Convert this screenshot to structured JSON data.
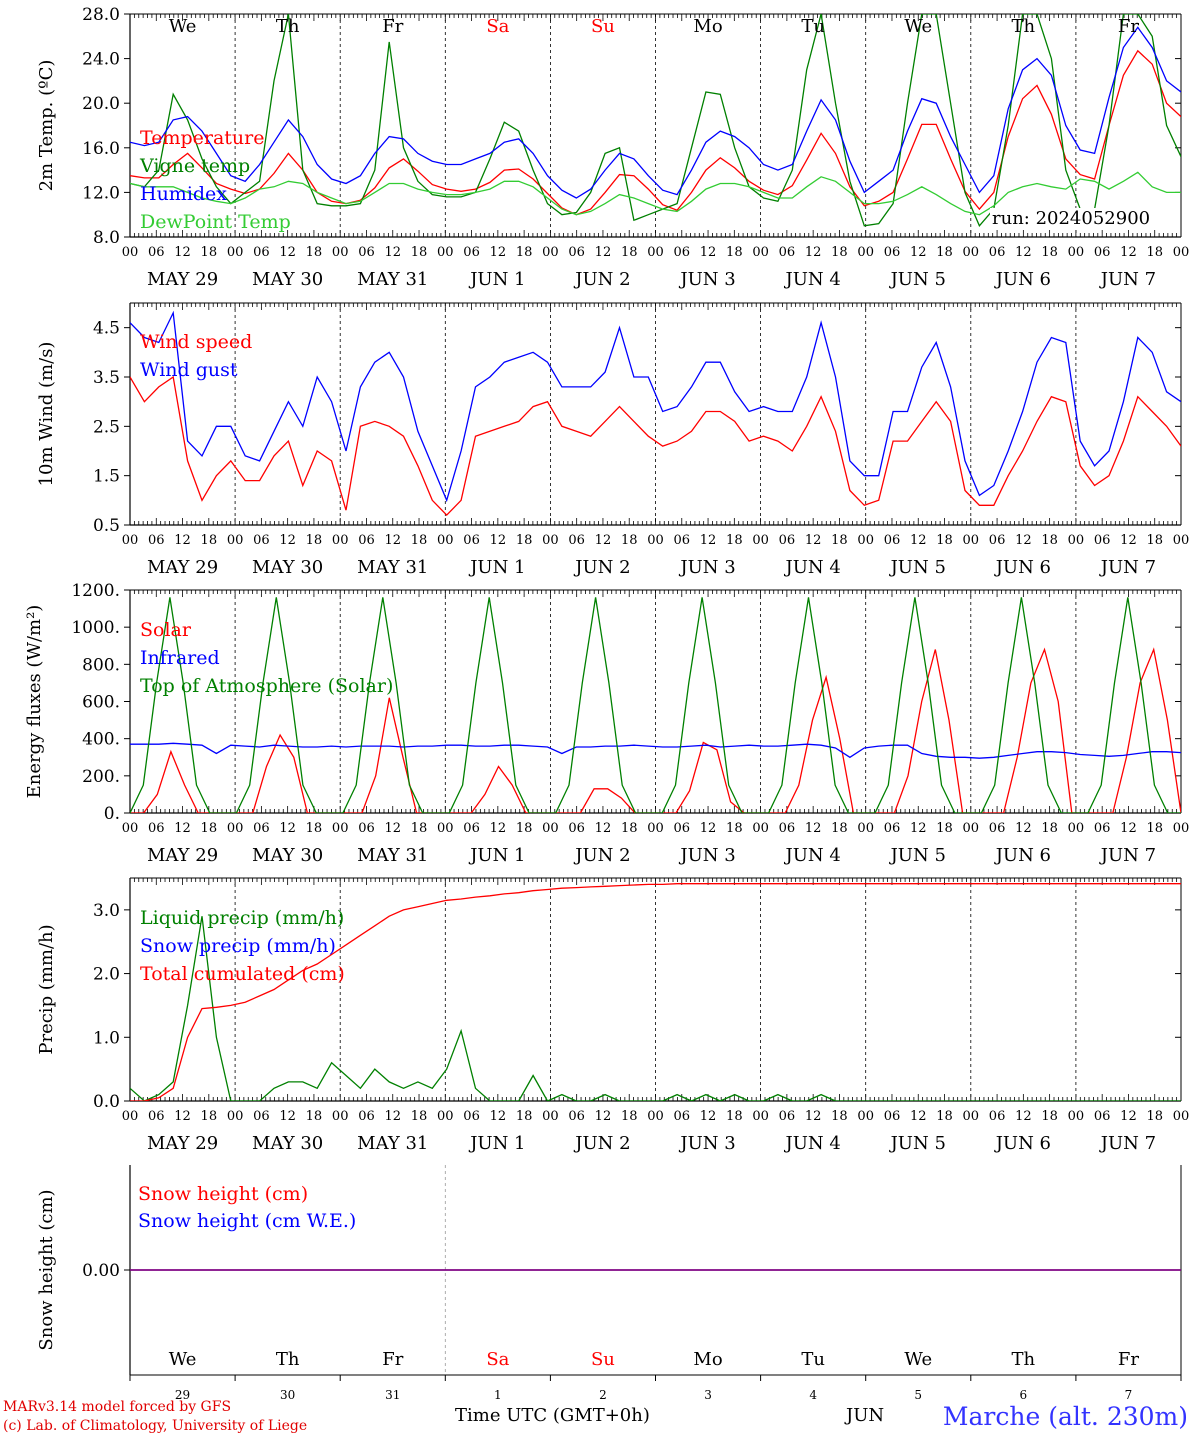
{
  "run_label": "run: 2024052900",
  "footer": {
    "credit_line1": "MARv3.14 model forced by GFS",
    "credit_line2": "(c) Lab. of Climatology, University of Liege",
    "station": "Marche (alt. 230m)",
    "month": "JUN",
    "time_axis": "Time UTC (GMT+0h)"
  },
  "colors": {
    "red": "#ff0000",
    "green": "#008000",
    "blue": "#0000ff",
    "light_green": "#33cc33",
    "purple": "#800080",
    "weekend": "#ff0000"
  },
  "days": {
    "weekdays": [
      "We",
      "Th",
      "Fr",
      "Sa",
      "Su",
      "Mo",
      "Tu",
      "We",
      "Th",
      "Fr"
    ],
    "weekend_flags": [
      false,
      false,
      false,
      true,
      true,
      false,
      false,
      false,
      false,
      false
    ],
    "date_labels": [
      "MAY 29",
      "MAY 30",
      "MAY 31",
      "JUN  1",
      "JUN  2",
      "JUN  3",
      "JUN  4",
      "JUN  5",
      "JUN  6",
      "JUN  7"
    ],
    "day_numbers": [
      "29",
      "30",
      "31",
      "1",
      "2",
      "3",
      "4",
      "5",
      "6",
      "7"
    ],
    "hour_ticks": [
      "00",
      "06",
      "12",
      "18"
    ]
  },
  "chart_data": [
    {
      "type": "line",
      "ylabel": "2m Temp. (ºC)",
      "ylim": [
        8,
        28
      ],
      "yticks": [
        "8.0",
        "12.0",
        "16.0",
        "20.0",
        "24.0",
        "28.0"
      ],
      "x_unit": "hours since 2024-05-29 00 UTC, every 3 h",
      "series": [
        {
          "name": "Temperature",
          "color": "red",
          "values": [
            13.5,
            13.3,
            13.3,
            14.5,
            15.5,
            14.2,
            12.8,
            12.3,
            11.9,
            12.3,
            13.7,
            15.5,
            14.0,
            12.0,
            11.2,
            11.0,
            11.3,
            12.4,
            14.2,
            15.0,
            13.9,
            12.7,
            12.3,
            12.1,
            12.3,
            12.9,
            14.0,
            14.1,
            13.2,
            11.9,
            10.6,
            10.0,
            10.5,
            12.0,
            13.6,
            13.5,
            12.3,
            10.9,
            10.4,
            12.0,
            14.0,
            15.1,
            14.2,
            13.0,
            12.2,
            11.8,
            12.6,
            14.9,
            17.3,
            15.5,
            12.5,
            10.8,
            11.2,
            12.0,
            15.0,
            18.1,
            18.1,
            15.0,
            12.1,
            10.5,
            12.0,
            17.0,
            20.4,
            21.6,
            19.0,
            15.0,
            13.6,
            13.2,
            18.0,
            22.5,
            24.7,
            23.5,
            20.0,
            18.8
          ]
        },
        {
          "name": "Vigne temp",
          "color": "green",
          "values": [
            12.8,
            12.5,
            14.0,
            20.8,
            18.5,
            15.0,
            12.5,
            11.0,
            12.0,
            13.0,
            22.0,
            28.0,
            14.0,
            11.0,
            10.8,
            10.8,
            11.0,
            14.0,
            25.5,
            16.0,
            13.0,
            11.8,
            11.6,
            11.6,
            12.0,
            15.0,
            18.3,
            17.5,
            14.0,
            11.0,
            10.0,
            10.2,
            12.0,
            15.5,
            16.0,
            9.5,
            10.0,
            10.5,
            11.0,
            16.0,
            21.0,
            20.8,
            16.0,
            12.5,
            11.5,
            11.2,
            14.0,
            23.0,
            28.0,
            20.0,
            13.0,
            9.0,
            9.2,
            11.0,
            20.0,
            28.0,
            28.0,
            20.0,
            12.0,
            9.0,
            10.5,
            18.0,
            28.0,
            28.0,
            24.0,
            14.0,
            10.5,
            10.5,
            18.0,
            28.0,
            28.0,
            26.0,
            18.0,
            15.2
          ]
        },
        {
          "name": "Humidex",
          "color": "blue",
          "values": [
            16.5,
            16.2,
            16.5,
            18.5,
            18.8,
            17.5,
            15.5,
            13.5,
            13.0,
            14.5,
            16.5,
            18.5,
            17.0,
            14.5,
            13.2,
            12.8,
            13.5,
            15.5,
            17.0,
            16.8,
            15.5,
            14.8,
            14.5,
            14.5,
            15.0,
            15.5,
            16.5,
            16.8,
            15.5,
            13.5,
            12.2,
            11.5,
            12.3,
            14.0,
            15.5,
            15.0,
            13.5,
            12.2,
            11.8,
            14.0,
            16.5,
            17.5,
            17.0,
            16.0,
            14.5,
            14.0,
            14.5,
            17.5,
            20.3,
            18.5,
            14.8,
            12.0,
            13.0,
            14.0,
            17.5,
            20.4,
            20.0,
            17.0,
            14.5,
            12.0,
            13.5,
            19.5,
            23.0,
            24.0,
            22.5,
            18.0,
            15.8,
            15.5,
            20.5,
            25.0,
            26.8,
            25.0,
            22.0,
            21.0
          ]
        },
        {
          "name": "DewPoint Temp",
          "color": "light_green",
          "values": [
            12.8,
            12.5,
            12.5,
            12.5,
            12.0,
            11.5,
            11.2,
            11.0,
            11.5,
            12.3,
            12.5,
            13.0,
            12.8,
            12.0,
            11.5,
            11.0,
            11.2,
            12.0,
            12.8,
            12.8,
            12.3,
            12.0,
            11.8,
            11.8,
            12.0,
            12.3,
            13.0,
            13.0,
            12.5,
            11.5,
            10.5,
            10.0,
            10.3,
            11.0,
            11.8,
            11.5,
            11.0,
            10.5,
            10.3,
            11.2,
            12.3,
            12.8,
            12.8,
            12.5,
            12.0,
            11.5,
            11.5,
            12.5,
            13.4,
            13.0,
            12.0,
            11.0,
            11.0,
            11.2,
            11.8,
            12.5,
            11.8,
            11.0,
            10.3,
            10.0,
            10.8,
            12.0,
            12.5,
            12.8,
            12.5,
            12.3,
            13.2,
            13.0,
            12.3,
            13.0,
            13.8,
            12.5,
            12.0,
            12.0
          ]
        }
      ]
    },
    {
      "type": "line",
      "ylabel": "10m Wind (m/s)",
      "ylim": [
        0.5,
        5.0
      ],
      "yticks": [
        "0.5",
        "1.5",
        "2.5",
        "3.5",
        "4.5"
      ],
      "series": [
        {
          "name": "Wind speed",
          "color": "red",
          "values": [
            3.5,
            3.0,
            3.3,
            3.5,
            1.8,
            1.0,
            1.5,
            1.8,
            1.4,
            1.4,
            1.9,
            2.2,
            1.3,
            2.0,
            1.8,
            0.8,
            2.5,
            2.6,
            2.5,
            2.3,
            1.7,
            1.0,
            0.7,
            1.0,
            2.3,
            2.4,
            2.5,
            2.6,
            2.9,
            3.0,
            2.5,
            2.4,
            2.3,
            2.6,
            2.9,
            2.6,
            2.3,
            2.1,
            2.2,
            2.4,
            2.8,
            2.8,
            2.6,
            2.2,
            2.3,
            2.2,
            2.0,
            2.5,
            3.1,
            2.4,
            1.2,
            0.9,
            1.0,
            2.2,
            2.2,
            2.6,
            3.0,
            2.6,
            1.2,
            0.9,
            0.9,
            1.5,
            2.0,
            2.6,
            3.1,
            3.0,
            1.7,
            1.3,
            1.5,
            2.2,
            3.1,
            2.8,
            2.5,
            2.1
          ]
        },
        {
          "name": "Wind gust",
          "color": "blue",
          "values": [
            4.6,
            4.3,
            4.2,
            4.8,
            2.2,
            1.9,
            2.5,
            2.5,
            1.9,
            1.8,
            2.4,
            3.0,
            2.5,
            3.5,
            3.0,
            2.0,
            3.3,
            3.8,
            4.0,
            3.5,
            2.4,
            1.7,
            1.0,
            2.0,
            3.3,
            3.5,
            3.8,
            3.9,
            4.0,
            3.8,
            3.3,
            3.3,
            3.3,
            3.6,
            4.5,
            3.5,
            3.5,
            2.8,
            2.9,
            3.3,
            3.8,
            3.8,
            3.2,
            2.8,
            2.9,
            2.8,
            2.8,
            3.5,
            4.6,
            3.5,
            1.8,
            1.5,
            1.5,
            2.8,
            2.8,
            3.7,
            4.2,
            3.3,
            1.8,
            1.1,
            1.3,
            2.0,
            2.8,
            3.8,
            4.3,
            4.2,
            2.2,
            1.7,
            2.0,
            3.0,
            4.3,
            4.0,
            3.2,
            3.0
          ]
        }
      ]
    },
    {
      "type": "line",
      "ylabel": "Energy fluxes (W/m²)",
      "ylim": [
        0,
        1200
      ],
      "yticks": [
        "0.",
        "200.",
        "400.",
        "600.",
        "800.",
        "1000.",
        "1200."
      ],
      "series": [
        {
          "name": "Solar",
          "color": "red",
          "values": [
            0,
            0,
            100,
            330,
            150,
            0,
            0,
            0,
            0,
            0,
            250,
            420,
            300,
            0,
            0,
            0,
            0,
            0,
            200,
            620,
            300,
            0,
            0,
            0,
            0,
            0,
            100,
            250,
            150,
            0,
            0,
            0,
            0,
            0,
            130,
            130,
            80,
            0,
            0,
            0,
            0,
            120,
            380,
            340,
            60,
            0,
            0,
            0,
            0,
            150,
            500,
            730,
            400,
            0,
            0,
            0,
            0,
            200,
            600,
            880,
            500,
            0,
            0,
            0,
            0,
            300,
            700,
            880,
            600,
            0,
            0,
            0,
            0,
            300,
            700,
            880,
            500,
            0
          ]
        },
        {
          "name": "Infrared",
          "color": "blue",
          "values": [
            370,
            370,
            370,
            375,
            370,
            365,
            320,
            365,
            360,
            355,
            365,
            360,
            355,
            355,
            360,
            355,
            360,
            360,
            360,
            355,
            360,
            360,
            365,
            365,
            360,
            360,
            365,
            365,
            360,
            355,
            320,
            355,
            355,
            360,
            360,
            365,
            360,
            355,
            355,
            360,
            365,
            355,
            360,
            365,
            360,
            360,
            365,
            370,
            365,
            350,
            300,
            350,
            360,
            365,
            365,
            320,
            305,
            300,
            300,
            295,
            300,
            310,
            320,
            330,
            330,
            325,
            315,
            310,
            305,
            310,
            320,
            330,
            330,
            325
          ]
        },
        {
          "name": "Top of Atmosphere (Solar)",
          "color": "green",
          "values": [
            0,
            150,
            700,
            1160,
            700,
            150,
            0,
            0,
            0,
            150,
            700,
            1160,
            700,
            150,
            0,
            0,
            0,
            150,
            700,
            1160,
            700,
            150,
            0,
            0,
            0,
            150,
            700,
            1160,
            700,
            150,
            0,
            0,
            0,
            150,
            700,
            1160,
            700,
            150,
            0,
            0,
            0,
            150,
            700,
            1160,
            700,
            150,
            0,
            0,
            0,
            150,
            700,
            1160,
            700,
            150,
            0,
            0,
            0,
            150,
            700,
            1160,
            700,
            150,
            0,
            0,
            0,
            150,
            700,
            1160,
            700,
            150,
            0,
            0,
            0,
            150,
            700,
            1160,
            700,
            150,
            0,
            0
          ]
        }
      ]
    },
    {
      "type": "line",
      "ylabel": "Precip (mm/h)",
      "ylim": [
        0,
        3.5
      ],
      "yticks": [
        "0.0",
        "1.0",
        "2.0",
        "3.0"
      ],
      "series": [
        {
          "name": "Liquid precip (mm/h)",
          "color": "green",
          "values": [
            0.2,
            0.0,
            0.1,
            0.3,
            1.5,
            2.9,
            1.0,
            0.0,
            0.0,
            0.0,
            0.2,
            0.3,
            0.3,
            0.2,
            0.6,
            0.4,
            0.2,
            0.5,
            0.3,
            0.2,
            0.3,
            0.2,
            0.5,
            1.1,
            0.2,
            0.0,
            0.0,
            0.0,
            0.4,
            0.0,
            0.1,
            0.0,
            0.0,
            0.1,
            0.0,
            0.0,
            0.0,
            0.0,
            0.1,
            0.0,
            0.1,
            0.0,
            0.1,
            0.0,
            0.0,
            0.1,
            0.0,
            0.0,
            0.1,
            0.0,
            0.0,
            0.0,
            0.0,
            0.0,
            0.0,
            0.0,
            0.0,
            0.0,
            0.0,
            0.0,
            0.0,
            0.0,
            0.0,
            0.0,
            0.0,
            0.0,
            0.0,
            0.0,
            0.0,
            0.0,
            0.0,
            0.0,
            0.0,
            0.0
          ]
        },
        {
          "name": "Snow precip (mm/h)",
          "color": "blue",
          "values": []
        },
        {
          "name": "Total cumulated (cm)",
          "color": "red",
          "values": [
            0.0,
            0.0,
            0.05,
            0.2,
            1.0,
            1.45,
            1.47,
            1.5,
            1.55,
            1.65,
            1.75,
            1.9,
            2.05,
            2.15,
            2.3,
            2.45,
            2.6,
            2.75,
            2.9,
            3.0,
            3.05,
            3.1,
            3.15,
            3.17,
            3.2,
            3.22,
            3.25,
            3.27,
            3.3,
            3.32,
            3.34,
            3.35,
            3.36,
            3.37,
            3.38,
            3.39,
            3.4,
            3.4,
            3.41,
            3.41,
            3.41,
            3.41,
            3.41,
            3.41,
            3.41,
            3.41,
            3.41,
            3.41,
            3.41,
            3.41,
            3.41,
            3.41,
            3.41,
            3.41,
            3.41,
            3.41,
            3.41,
            3.41,
            3.41,
            3.41,
            3.41,
            3.41,
            3.41,
            3.41,
            3.41,
            3.41,
            3.41,
            3.41,
            3.41,
            3.41,
            3.41,
            3.41,
            3.41,
            3.41
          ]
        }
      ]
    },
    {
      "type": "line",
      "ylabel": "Snow height (cm)",
      "ylim": [
        -1,
        1
      ],
      "yticks": [
        "0.00"
      ],
      "series": [
        {
          "name": "Snow height (cm)",
          "color": "red",
          "values": [
            0,
            0
          ]
        },
        {
          "name": "Snow height (cm W.E.)",
          "color": "blue",
          "values": [
            0,
            0
          ]
        }
      ]
    }
  ]
}
